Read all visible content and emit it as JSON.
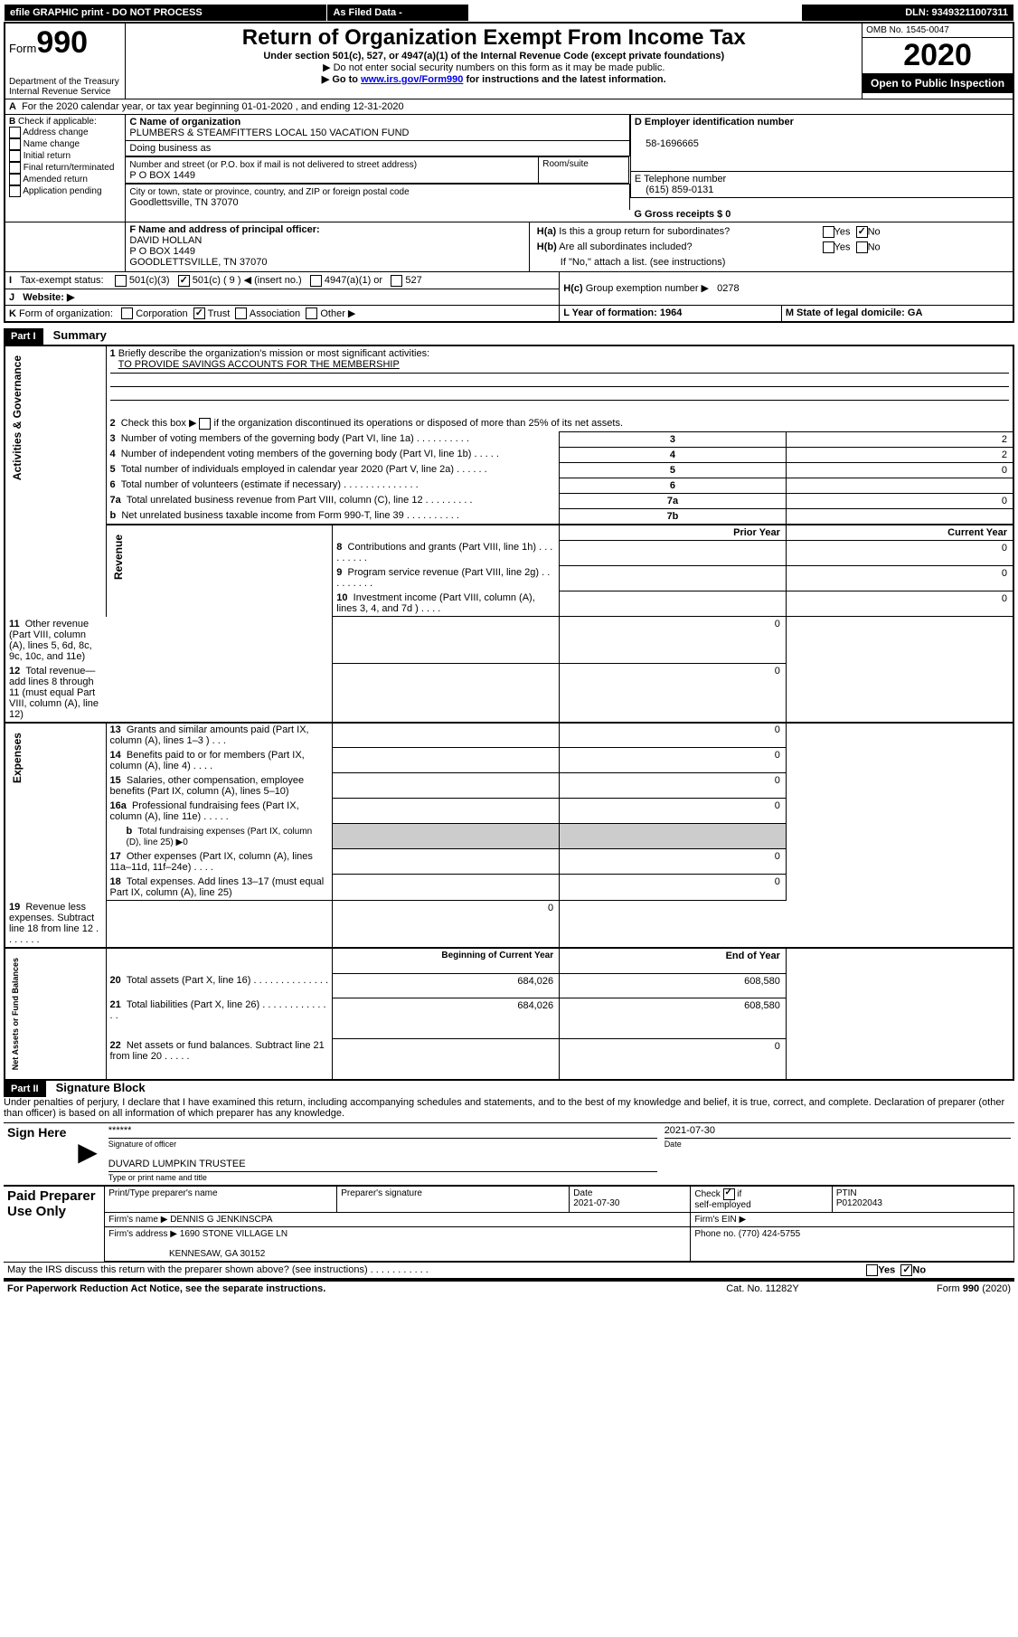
{
  "top_banner": {
    "efile": "efile GRAPHIC print - DO NOT PROCESS",
    "asfiled": "As Filed Data -",
    "dln": "DLN: 93493211007311"
  },
  "header": {
    "form_label": "Form",
    "form_num": "990",
    "dept": "Department of the Treasury",
    "irs": "Internal Revenue Service",
    "title": "Return of Organization Exempt From Income Tax",
    "sub1": "Under section 501(c), 527, or 4947(a)(1) of the Internal Revenue Code (except private foundations)",
    "sub2": "▶ Do not enter social security numbers on this form as it may be made public.",
    "sub3a": "▶ Go to ",
    "sub3_link": "www.irs.gov/Form990",
    "sub3b": " for instructions and the latest information.",
    "omb": "OMB No. 1545-0047",
    "year": "2020",
    "open": "Open to Public Inspection"
  },
  "lineA": "For the 2020 calendar year, or tax year beginning 01-01-2020   , and ending 12-31-2020",
  "boxB": {
    "label": "Check if applicable:",
    "opts": [
      "Address change",
      "Name change",
      "Initial return",
      "Final return/terminated",
      "Amended return",
      "Application pending"
    ]
  },
  "boxC": {
    "label": "C Name of organization",
    "org": "PLUMBERS & STEAMFITTERS LOCAL 150 VACATION FUND",
    "dba": "Doing business as",
    "addr_label": "Number and street (or P.O. box if mail is not delivered to street address)",
    "room": "Room/suite",
    "addr": "P O BOX 1449",
    "city_label": "City or town, state or province, country, and ZIP or foreign postal code",
    "city": "Goodlettsville, TN  37070"
  },
  "boxD": {
    "label": "D Employer identification number",
    "val": "58-1696665"
  },
  "boxE": {
    "label": "E Telephone number",
    "val": "(615) 859-0131"
  },
  "boxG": {
    "label": "G Gross receipts $ 0"
  },
  "boxF": {
    "label": "F  Name and address of principal officer:",
    "name": "DAVID HOLLAN",
    "addr1": "P O BOX 1449",
    "addr2": "GOODLETTSVILLE, TN  37070"
  },
  "boxH": {
    "a": "Is this a group return for subordinates?",
    "b": "Are all subordinates included?",
    "note": "If \"No,\" attach a list. (see instructions)",
    "c_lbl": "Group exemption number ▶",
    "c_val": "0278",
    "yes": "Yes",
    "no": "No"
  },
  "lineI": {
    "label": "Tax-exempt status:",
    "o1": "501(c)(3)",
    "o2": "501(c) ( 9 ) ◀ (insert no.)",
    "o3": "4947(a)(1) or",
    "o4": "527"
  },
  "lineJ": "Website: ▶",
  "lineK": {
    "label": "Form of organization:",
    "o": [
      "Corporation",
      "Trust",
      "Association",
      "Other ▶"
    ]
  },
  "lineL": {
    "label": "L Year of formation: 1964"
  },
  "lineM": {
    "label": "M State of legal domicile: GA"
  },
  "partI": "Part I",
  "summary": "Summary",
  "s1": {
    "num": "1",
    "text": "Briefly describe the organization's mission or most significant activities:",
    "val": "TO PROVIDE SAVINGS ACCOUNTS FOR THE MEMBERSHIP"
  },
  "s2": "Check this box ▶       if the organization discontinued its operations or disposed of more than 25% of its net assets.",
  "rows": [
    {
      "n": "3",
      "d": "Number of voting members of the governing body (Part VI, line 1a)  .   .   .   .   .   .   .   .   .   .",
      "c": "3",
      "v": "2"
    },
    {
      "n": "4",
      "d": "Number of independent voting members of the governing body (Part VI, line 1b)   .   .   .   .   .",
      "c": "4",
      "v": "2"
    },
    {
      "n": "5",
      "d": "Total number of individuals employed in calendar year 2020 (Part V, line 2a)  .   .   .   .   .   .",
      "c": "5",
      "v": "0"
    },
    {
      "n": "6",
      "d": "Total number of volunteers (estimate if necessary)   .   .   .   .   .   .   .   .   .   .   .   .   .   .",
      "c": "6",
      "v": ""
    },
    {
      "n": "7a",
      "d": "Total unrelated business revenue from Part VIII, column (C), line 12   .   .   .   .   .   .   .   .   .",
      "c": "7a",
      "v": "0"
    },
    {
      "n": "b",
      "d": "Net unrelated business taxable income from Form 990-T, line 39   .   .   .   .   .   .   .   .   .   .",
      "c": "7b",
      "v": ""
    }
  ],
  "py": "Prior Year",
  "cy": "Current Year",
  "rev_rows": [
    {
      "n": "8",
      "d": "Contributions and grants (Part VIII, line 1h)   .   .   .   .   .   .   .   .   .",
      "p": "",
      "c": "0"
    },
    {
      "n": "9",
      "d": "Program service revenue (Part VIII, line 2g)   .   .   .   .   .   .   .   .   .",
      "p": "",
      "c": "0"
    },
    {
      "n": "10",
      "d": "Investment income (Part VIII, column (A), lines 3, 4, and 7d )   .   .   .   .",
      "p": "",
      "c": "0"
    },
    {
      "n": "11",
      "d": "Other revenue (Part VIII, column (A), lines 5, 6d, 8c, 9c, 10c, and 11e)",
      "p": "",
      "c": "0"
    },
    {
      "n": "12",
      "d": "Total revenue—add lines 8 through 11 (must equal Part VIII, column (A), line 12)",
      "p": "",
      "c": "0"
    }
  ],
  "exp_rows": [
    {
      "n": "13",
      "d": "Grants and similar amounts paid (Part IX, column (A), lines 1–3 )   .   .   .",
      "p": "",
      "c": "0"
    },
    {
      "n": "14",
      "d": "Benefits paid to or for members (Part IX, column (A), line 4)   .   .   .   .",
      "p": "",
      "c": "0"
    },
    {
      "n": "15",
      "d": "Salaries, other compensation, employee benefits (Part IX, column (A), lines 5–10)",
      "p": "",
      "c": "0"
    },
    {
      "n": "16a",
      "d": "Professional fundraising fees (Part IX, column (A), line 11e)   .   .   .   .   .",
      "p": "",
      "c": "0"
    }
  ],
  "exp_16b": "Total fundraising expenses (Part IX, column (D), line 25) ▶0",
  "exp_rows2": [
    {
      "n": "17",
      "d": "Other expenses (Part IX, column (A), lines 11a–11d, 11f–24e)   .   .   .   .",
      "p": "",
      "c": "0"
    },
    {
      "n": "18",
      "d": "Total expenses. Add lines 13–17 (must equal Part IX, column (A), line 25)",
      "p": "",
      "c": "0"
    },
    {
      "n": "19",
      "d": "Revenue less expenses. Subtract line 18 from line 12   .   .   .   .   .   .   .",
      "p": "",
      "c": "0"
    }
  ],
  "bcy": "Beginning of Current Year",
  "eoy": "End of Year",
  "na_rows": [
    {
      "n": "20",
      "d": "Total assets (Part X, line 16)   .   .   .   .   .   .   .   .   .   .   .   .   .   .",
      "p": "684,026",
      "c": "608,580"
    },
    {
      "n": "21",
      "d": "Total liabilities (Part X, line 26)  .   .   .   .   .   .   .   .   .   .   .   .   .   .",
      "p": "684,026",
      "c": "608,580"
    },
    {
      "n": "22",
      "d": "Net assets or fund balances. Subtract line 21 from line 20  .   .   .   .   .",
      "p": "",
      "c": "0"
    }
  ],
  "vert": {
    "ag": "Activities & Governance",
    "rev": "Revenue",
    "exp": "Expenses",
    "na": "Net Assets or Fund Balances"
  },
  "partII": "Part II",
  "sigblock": "Signature Block",
  "perjury": "Under penalties of perjury, I declare that I have examined this return, including accompanying schedules and statements, and to the best of my knowledge and belief, it is true, correct, and complete. Declaration of preparer (other than officer) is based on all information of which preparer has any knowledge.",
  "sign": {
    "here": "Sign Here",
    "stars": "******",
    "sig_of": "Signature of officer",
    "date": "Date",
    "dated": "2021-07-30",
    "name": "DUVARD LUMPKIN TRUSTEE",
    "name_lbl": "Type or print name and title"
  },
  "paid": {
    "label": "Paid Preparer Use Only",
    "h1": "Print/Type preparer's name",
    "h2": "Preparer's signature",
    "h3": "Date",
    "h3v": "2021-07-30",
    "h4": "Check        if self-employed",
    "h5": "PTIN",
    "h5v": "P01202043",
    "firm": "Firm's name    ▶ DENNIS G JENKINSCPA",
    "ein": "Firm's EIN ▶",
    "addr": "Firm's address ▶ 1690 STONE VILLAGE LN",
    "addr2": "KENNESAW, GA  30152",
    "phone": "Phone no. (770) 424-5755"
  },
  "footer": {
    "q": "May the IRS discuss this return with the preparer shown above? (see instructions)   .   .   .   .   .   .   .   .   .   .   .",
    "pra": "For Paperwork Reduction Act Notice, see the separate instructions.",
    "cat": "Cat. No. 11282Y",
    "form": "Form 990 (2020)"
  }
}
